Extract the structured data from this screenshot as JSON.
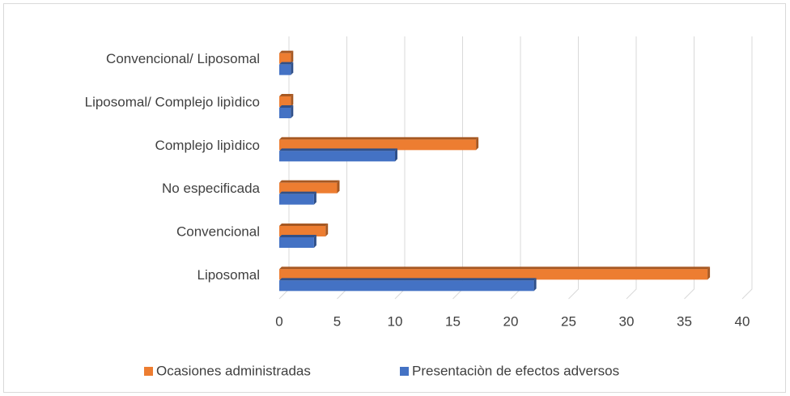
{
  "chart_data": {
    "type": "bar",
    "orientation": "horizontal",
    "categories": [
      "Liposomal",
      "Convencional",
      "No especificada",
      "Complejo lipìdico",
      "Liposomal/ Complejo lipìdico",
      "Convencional/ Liposomal"
    ],
    "series": [
      {
        "name": "Ocasiones administradas",
        "color": "#ed7d31",
        "values": [
          37,
          4,
          5,
          17,
          1,
          1
        ]
      },
      {
        "name": "Presentaciòn de efectos adversos",
        "color": "#4472c4",
        "values": [
          22,
          3,
          3,
          10,
          1,
          1
        ]
      }
    ],
    "xlim": [
      0,
      40
    ],
    "xticks": [
      0,
      5,
      10,
      15,
      20,
      25,
      30,
      35,
      40
    ],
    "grid": true,
    "legend": "bottom"
  }
}
